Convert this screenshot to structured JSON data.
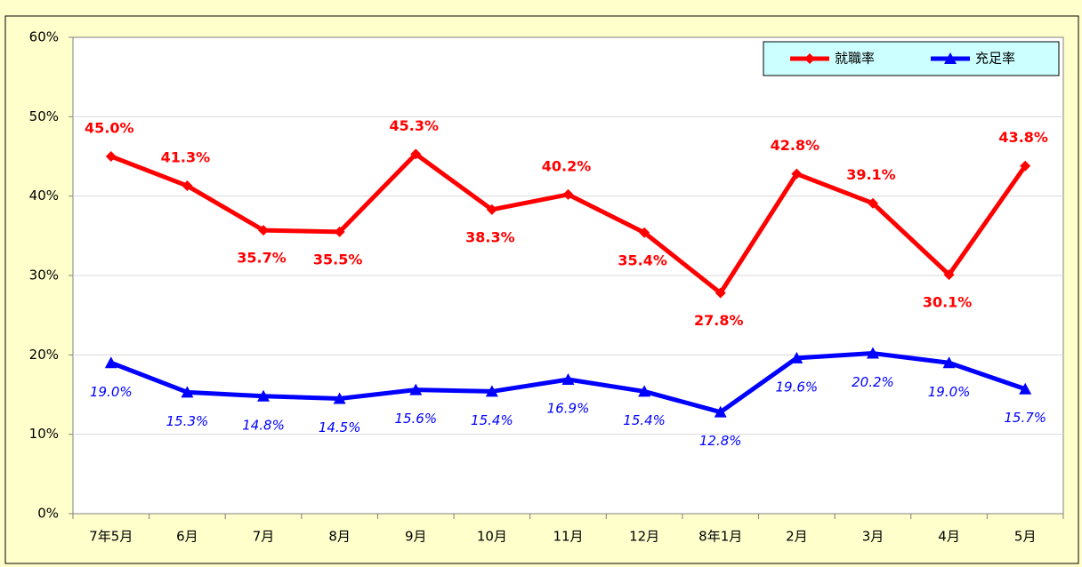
{
  "chart_data": {
    "type": "line",
    "categories": [
      "7年5月",
      "6月",
      "7月",
      "8月",
      "9月",
      "10月",
      "11月",
      "12月",
      "8年1月",
      "2月",
      "3月",
      "4月",
      "5月"
    ],
    "series": [
      {
        "name": "就職率",
        "color": "#ff0000",
        "marker": "diamond",
        "values": [
          45.0,
          41.3,
          35.7,
          35.5,
          45.3,
          38.3,
          40.2,
          35.4,
          27.8,
          42.8,
          39.1,
          30.1,
          43.8
        ],
        "value_labels": [
          "45.0%",
          "41.3%",
          "35.7%",
          "35.5%",
          "45.3%",
          "38.3%",
          "40.2%",
          "35.4%",
          "27.8%",
          "42.8%",
          "39.1%",
          "30.1%",
          "43.8%"
        ]
      },
      {
        "name": "充足率",
        "color": "#0000ff",
        "marker": "triangle",
        "values": [
          19.0,
          15.3,
          14.8,
          14.5,
          15.6,
          15.4,
          16.9,
          15.4,
          12.8,
          19.6,
          20.2,
          19.0,
          15.7
        ],
        "value_labels": [
          "19.0%",
          "15.3%",
          "14.8%",
          "14.5%",
          "15.6%",
          "15.4%",
          "16.9%",
          "15.4%",
          "12.8%",
          "19.6%",
          "20.2%",
          "19.0%",
          "15.7%"
        ]
      }
    ],
    "ylim": [
      0,
      60
    ],
    "yticks": [
      {
        "value": 0,
        "label": "0%"
      },
      {
        "value": 10,
        "label": "10%"
      },
      {
        "value": 20,
        "label": "20%"
      },
      {
        "value": 30,
        "label": "30%"
      },
      {
        "value": 40,
        "label": "40%"
      },
      {
        "value": 50,
        "label": "50%"
      },
      {
        "value": 60,
        "label": "60%"
      }
    ],
    "grid": true,
    "legend": "top-right"
  }
}
